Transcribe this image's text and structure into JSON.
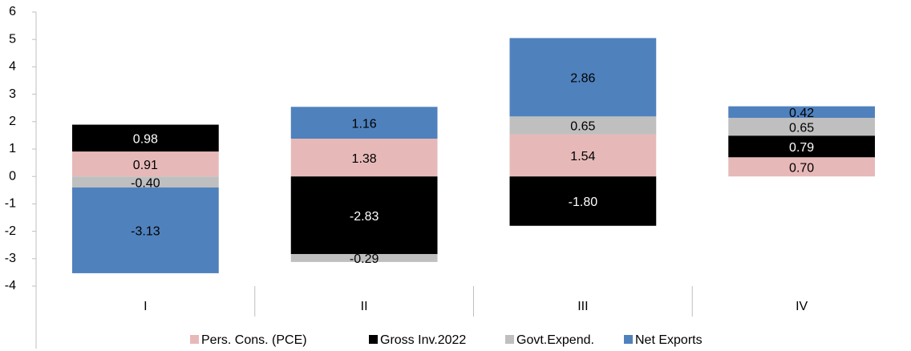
{
  "chart_data": {
    "type": "stacked_bar",
    "categories": [
      "I",
      "II",
      "III",
      "IV"
    ],
    "series": [
      {
        "name": "Pers. Cons. (PCE)",
        "color": "#e6b9b8",
        "values": [
          0.91,
          1.38,
          1.54,
          0.7
        ],
        "value_labels": [
          "0.91",
          "1.38",
          "1.54",
          "0.70"
        ]
      },
      {
        "name": "Gross Inv.2022",
        "color": "#000000",
        "values": [
          0.98,
          -2.83,
          -1.8,
          0.79
        ],
        "value_labels": [
          "0.98",
          "-2.83",
          "-1.80",
          "0.79"
        ]
      },
      {
        "name": "Govt.Expend.",
        "color": "#bfbfbf",
        "values": [
          -0.4,
          -0.29,
          0.65,
          0.65
        ],
        "value_labels": [
          "-0.40",
          "-0.29",
          "0.65",
          "0.65"
        ]
      },
      {
        "name": "Net Exports",
        "color": "#4f81bd",
        "values": [
          -3.13,
          1.16,
          2.86,
          0.42
        ],
        "value_labels": [
          "-3.13",
          "1.16",
          "2.86",
          "0.42"
        ]
      }
    ],
    "ylim": [
      -4,
      6
    ],
    "yticks": [
      -4,
      -3,
      -2,
      -1,
      0,
      1,
      2,
      3,
      4,
      5,
      6
    ],
    "grid": false,
    "legend": "bottom"
  }
}
